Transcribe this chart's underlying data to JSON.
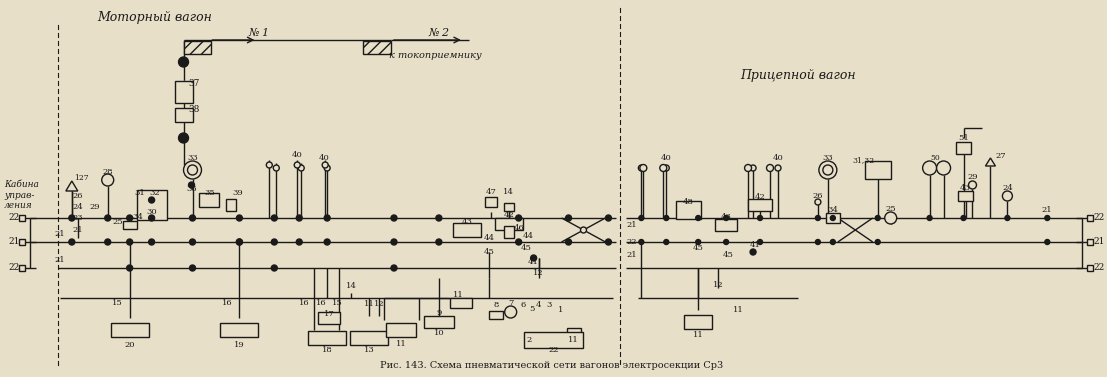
{
  "bg_color": "#e8dfc8",
  "line_color": "#1a1a1a",
  "title": "Рис. 143. Схема пневматической сети вагонов электросекции Ср3",
  "label_motor": "Моторный вагон",
  "label_cabin": "Кабина\nуправ-\nления",
  "label_trailer": "Прицепной вагон",
  "label_no1": "№ 1",
  "label_no2": "№ 2",
  "label_tokopriemnik": "к токоприемнику"
}
